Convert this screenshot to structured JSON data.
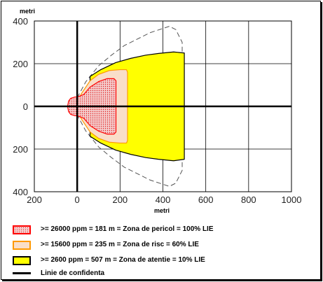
{
  "chart_data": {
    "type": "area",
    "title": "",
    "ylabel": "metri",
    "xlabel": "metri",
    "xlim": [
      -200,
      1000
    ],
    "ylim": [
      -400,
      400
    ],
    "x_ticks": [
      "200",
      "0",
      "200",
      "400",
      "600",
      "800",
      "1000"
    ],
    "y_ticks": [
      "400",
      "200",
      "0",
      "200",
      "400"
    ],
    "grid": true,
    "series": [
      {
        "name": ">= 2600 ppm = 507 m = Zona de atentie = 10% LIE",
        "color": "#ffff00",
        "stroke": "#000000",
        "points": [
          [
            60,
            140
          ],
          [
            110,
            172
          ],
          [
            180,
            205
          ],
          [
            250,
            225
          ],
          [
            320,
            240
          ],
          [
            380,
            248
          ],
          [
            420,
            252
          ],
          [
            450,
            255
          ],
          [
            470,
            253
          ],
          [
            500,
            250
          ],
          [
            500,
            -248
          ],
          [
            470,
            -252
          ],
          [
            450,
            -255
          ],
          [
            420,
            -252
          ],
          [
            380,
            -248
          ],
          [
            320,
            -240
          ],
          [
            250,
            -225
          ],
          [
            180,
            -205
          ],
          [
            110,
            -172
          ],
          [
            60,
            -140
          ]
        ]
      },
      {
        "name": ">= 15600 ppm = 235 m = Zona de risc = 60% LIE",
        "color": "#f9dec9",
        "stroke": "#ff9900",
        "points": [
          [
            5,
            30
          ],
          [
            20,
            60
          ],
          [
            60,
            120
          ],
          [
            100,
            150
          ],
          [
            150,
            168
          ],
          [
            200,
            172
          ],
          [
            230,
            172
          ],
          [
            235,
            160
          ],
          [
            235,
            -160
          ],
          [
            230,
            -172
          ],
          [
            200,
            -172
          ],
          [
            150,
            -168
          ],
          [
            100,
            -150
          ],
          [
            60,
            -120
          ],
          [
            20,
            -60
          ],
          [
            5,
            -30
          ]
        ]
      },
      {
        "name": ">= 26000 ppm = 181 m = Zona de pericol = 100% LIE",
        "color": "#f4cccc",
        "stroke": "#ff0000",
        "hatch": true,
        "points": [
          [
            -45,
            0
          ],
          [
            -40,
            25
          ],
          [
            -30,
            38
          ],
          [
            -10,
            44
          ],
          [
            0,
            44
          ],
          [
            30,
            55
          ],
          [
            60,
            90
          ],
          [
            100,
            116
          ],
          [
            140,
            130
          ],
          [
            172,
            130
          ],
          [
            181,
            120
          ],
          [
            181,
            -120
          ],
          [
            172,
            -130
          ],
          [
            140,
            -130
          ],
          [
            100,
            -116
          ],
          [
            60,
            -90
          ],
          [
            30,
            -55
          ],
          [
            0,
            -44
          ],
          [
            -10,
            -44
          ],
          [
            -30,
            -38
          ],
          [
            -40,
            -25
          ]
        ]
      }
    ],
    "dashed_outline": {
      "points": [
        [
          0,
          40
        ],
        [
          40,
          115
        ],
        [
          100,
          190
        ],
        [
          160,
          240
        ],
        [
          220,
          285
        ],
        [
          280,
          315
        ],
        [
          340,
          345
        ],
        [
          400,
          365
        ],
        [
          430,
          375
        ],
        [
          460,
          360
        ],
        [
          490,
          300
        ],
        [
          490,
          -300
        ],
        [
          460,
          -360
        ],
        [
          430,
          -375
        ],
        [
          400,
          -365
        ],
        [
          340,
          -345
        ],
        [
          280,
          -315
        ],
        [
          220,
          -285
        ],
        [
          160,
          -240
        ],
        [
          100,
          -190
        ],
        [
          40,
          -115
        ],
        [
          0,
          -40
        ]
      ],
      "color": "#555555"
    },
    "legend": {
      "placement": "bottom",
      "entries": [
        {
          "label": ">= 26000 ppm = 181 m = Zona de pericol = 100% LIE",
          "fill": "#f4cccc",
          "border": "#ff0000",
          "hatch": true
        },
        {
          "label": ">= 15600 ppm = 235 m = Zona de risc = 60% LIE",
          "fill": "#f9dec9",
          "border": "#ff9900"
        },
        {
          "label": ">= 2600 ppm = 507 m = Zona de atentie = 10% LIE",
          "fill": "#ffff00",
          "border": "#000000"
        },
        {
          "label": "Linie de confidenta",
          "type": "line",
          "color": "#000000"
        }
      ]
    }
  }
}
